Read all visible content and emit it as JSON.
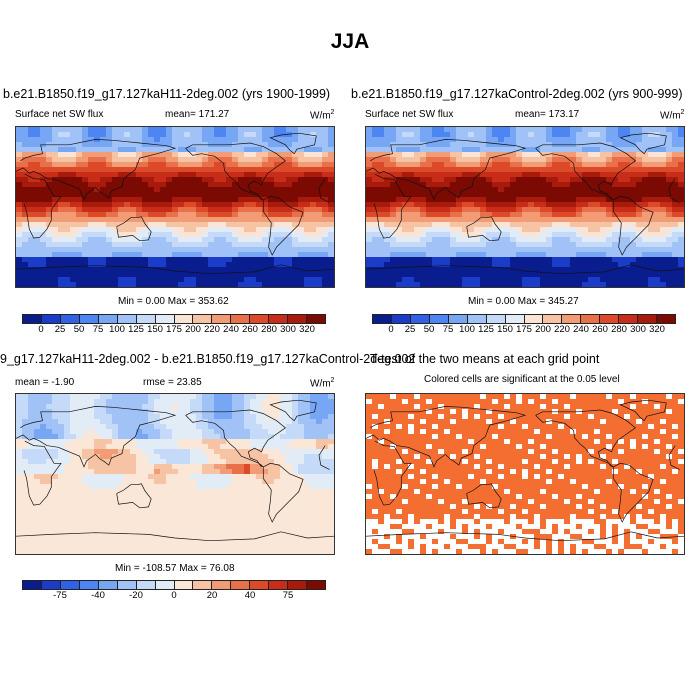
{
  "title": "JJA",
  "panels": {
    "p1": {
      "title": "b.e21.B1850.f19_g17.127kaH11-2deg.002 (yrs 1900-1999)",
      "variable": "Surface net SW flux",
      "mean": "mean= 171.27",
      "units": "W/m",
      "units_sup": "2",
      "minmax": "Min =   0.00 Max = 353.62"
    },
    "p2": {
      "title": "b.e21.B1850.f19_g17.127kaControl-2deg.002 (yrs 900-999)",
      "variable": "Surface net SW flux",
      "mean": "mean= 173.17",
      "units": "W/m",
      "units_sup": "2",
      "minmax": "Min =   0.00 Max = 345.27"
    },
    "p3": {
      "title": "9_g17.127kaH11-2deg.002 - b.e21.B1850.f19_g17.127kaControl-2deg.002",
      "mean": "mean =  -1.90",
      "rmse": "rmse =  23.85",
      "units": "W/m",
      "units_sup": "2",
      "minmax": "Min = -108.57 Max =  76.08"
    },
    "p4": {
      "title": "T-test of the two means at each grid point",
      "subtitle": "Colored cells are significant at the 0.05 level"
    }
  },
  "colorbar_abs": {
    "colors": [
      "#0a1d8f",
      "#1b3bc9",
      "#2f62e6",
      "#4d86f2",
      "#77a6f5",
      "#a0c2f7",
      "#c5daf8",
      "#e2ecf7",
      "#f9e4d6",
      "#f6c3a5",
      "#f19c74",
      "#e8704a",
      "#dd4a2a",
      "#c82d19",
      "#a81b0c",
      "#7a0a02"
    ],
    "ticks": [
      "0",
      "25",
      "50",
      "75",
      "100",
      "125",
      "150",
      "175",
      "200",
      "220",
      "240",
      "260",
      "280",
      "300",
      "320"
    ]
  },
  "colorbar_diff": {
    "colors": [
      "#0a1d8f",
      "#1b3bc9",
      "#2f62e6",
      "#4d86f2",
      "#77a6f5",
      "#a0c2f7",
      "#c5daf8",
      "#e2ecf7",
      "#fae7d7",
      "#f6c3a5",
      "#f19c74",
      "#e8704a",
      "#dd4a2a",
      "#c82d19",
      "#a81b0c",
      "#7a0a02"
    ],
    "ticks": [
      "-75",
      "-40",
      "-20",
      "0",
      "20",
      "40",
      "75"
    ]
  }
}
